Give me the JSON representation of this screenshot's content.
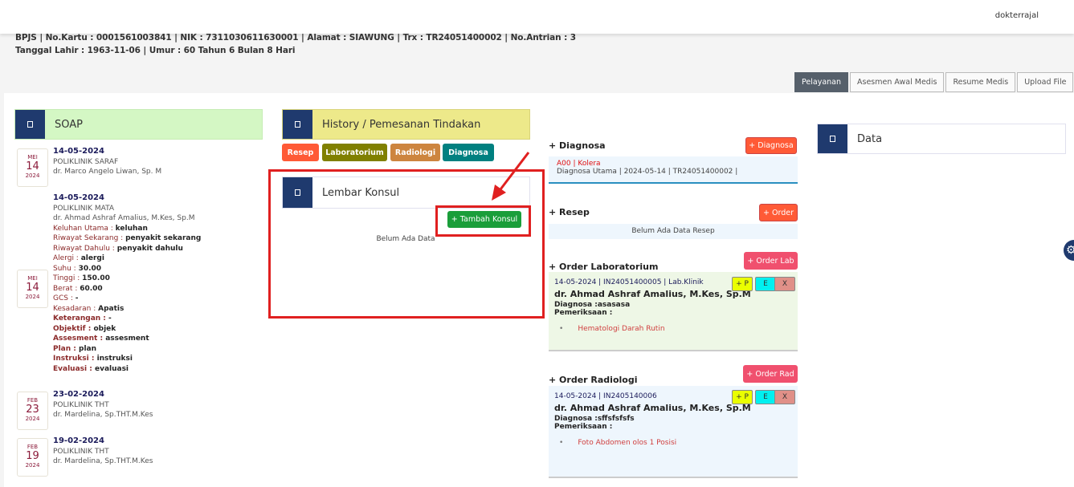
{
  "header": {
    "username": "dokterrajal"
  },
  "patient": {
    "line1": "BPJS | No.Kartu : 0001561003841 | NIK : 7311030611630001 | Alamat : SIAWUNG | Trx : TR24051400002 | No.Antrian : 3",
    "line2": "Tanggal Lahir : 1963-11-06 | Umur : 60 Tahun 6 Bulan 8 Hari"
  },
  "tabs": [
    {
      "label": "Pelayanan",
      "active": true
    },
    {
      "label": "Asesmen Awal Medis"
    },
    {
      "label": "Resume Medis"
    },
    {
      "label": "Upload File"
    }
  ],
  "soap": {
    "title": "SOAP",
    "items": [
      {
        "month": "MEI",
        "day": "14",
        "year": "2024",
        "date": "14-05-2024",
        "poli": "POLIKLINIK SARAF",
        "doctor": "dr. Marco Angelo Liwan, Sp. M"
      },
      {
        "month": "MEI",
        "day": "14",
        "year": "2024",
        "date": "14-05-2024",
        "poli": "POLIKLINIK MATA",
        "doctor": "dr. Ahmad Ashraf Amalius, M.Kes, Sp.M",
        "fields": [
          [
            "Keluhan Utama : ",
            "keluhan"
          ],
          [
            "Riwayat Sekarang : ",
            "penyakit sekarang"
          ],
          [
            "Riwayat Dahulu : ",
            "penyakit dahulu"
          ],
          [
            "Alergi : ",
            "alergi"
          ],
          [
            "Suhu : ",
            "30.00"
          ],
          [
            "Tinggi : ",
            "150.00"
          ],
          [
            "Berat : ",
            "60.00"
          ],
          [
            "GCS : ",
            "-"
          ],
          [
            "Kesadaran : ",
            "Apatis"
          ]
        ],
        "soap_fields": [
          [
            "Keterangan : ",
            "-"
          ],
          [
            "Objektif : ",
            "objek"
          ],
          [
            "Assesment : ",
            "assesment"
          ],
          [
            "Plan : ",
            "plan"
          ],
          [
            "Instruksi : ",
            "instruksi"
          ],
          [
            "Evaluasi : ",
            "evaluasi"
          ]
        ]
      },
      {
        "month": "FEB",
        "day": "23",
        "year": "2024",
        "date": "23-02-2024",
        "poli": "POLIKLINIK THT",
        "doctor": "dr. Mardelina, Sp.THT.M.Kes"
      },
      {
        "month": "FEB",
        "day": "19",
        "year": "2024",
        "date": "19-02-2024",
        "poli": "POLIKLINIK THT",
        "doctor": "dr. Mardelina, Sp.THT.M.Kes"
      }
    ]
  },
  "history": {
    "title": "History / Pemesanan Tindakan",
    "buttons": [
      "Resep",
      "Laboratorium",
      "Radiologi",
      "Diagnosa"
    ]
  },
  "konsul": {
    "title": "Lembar Konsul",
    "add_button": "+ Tambah Konsul",
    "empty": "Belum Ada Data"
  },
  "diagnosa": {
    "title": "+ Diagnosa",
    "button": "+ Diagnosa",
    "code": "A00 | Kolera",
    "detail": "Diagnosa Utama | 2024-05-14 | TR24051400002 |"
  },
  "resep": {
    "title": "+ Resep",
    "button": "+ Order",
    "empty": "Belum Ada Data Resep"
  },
  "lab": {
    "title": "+ Order Laboratorium",
    "button": "+ Order Lab",
    "info": "14-05-2024 | IN24051400005 | Lab.Klinik",
    "doctor": "dr. Ahmad Ashraf Amalius, M.Kes, Sp.M",
    "diagnosa": "Diagnosa :asasasa",
    "pemeriksaan": "Pemeriksaan :",
    "item": "Hematologi Darah Rutin"
  },
  "rad": {
    "title": "+ Order Radiologi",
    "button": "+ Order Rad",
    "info": "14-05-2024 | IN2405140006",
    "doctor": "dr. Ahmad Ashraf Amalius, M.Kes, Sp.M",
    "diagnosa": "Diagnosa :sffsfsfsfs",
    "pemeriksaan": "Pemeriksaan :",
    "item": "Foto Abdomen olos 1 Posisi"
  },
  "actions": {
    "print": "+ P",
    "edit": "E",
    "delete": "X"
  },
  "data_panel": {
    "title": "Data"
  },
  "colors": {
    "navy": "#1f3a6e",
    "highlight": "#e02020",
    "green_btn": "#1a9e3a"
  }
}
